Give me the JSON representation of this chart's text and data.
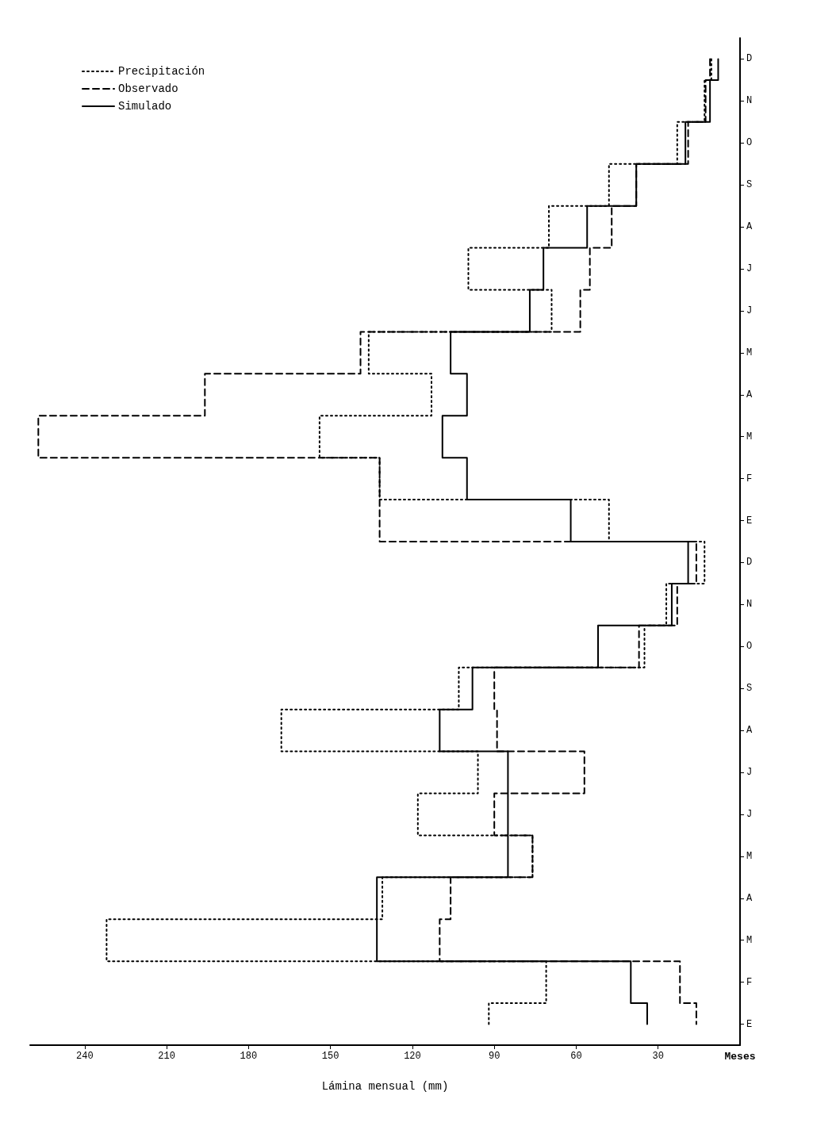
{
  "chart_data": {
    "type": "step",
    "orientation": "horizontal",
    "xlabel": "Lámina mensual (mm)",
    "ylabel": "Meses",
    "categories": [
      "D",
      "N",
      "O",
      "S",
      "A",
      "J",
      "J",
      "M",
      "A",
      "M",
      "F",
      "E",
      "D",
      "N",
      "O",
      "S",
      "A",
      "J",
      "J",
      "M",
      "A",
      "M",
      "F",
      "E"
    ],
    "series": [
      {
        "name": "Precipitación",
        "color": "#000000",
        "line_style": "dotted",
        "values": [
          10.5,
          13,
          23,
          48,
          70,
          99.5,
          69,
          136,
          113,
          154,
          132,
          48,
          13,
          27,
          35,
          103,
          168,
          96,
          118,
          76,
          131,
          232,
          71,
          92
        ]
      },
      {
        "name": "Observado",
        "color": "#000000",
        "line_style": "dashed",
        "values": [
          11,
          12.6,
          19,
          38,
          47,
          55,
          58.5,
          139,
          196,
          257,
          132,
          132,
          16,
          23,
          37,
          90,
          89,
          57,
          90,
          76,
          106,
          110,
          22,
          16
        ]
      },
      {
        "name": "Simulado",
        "color": "#000000",
        "line_style": "solid",
        "values": [
          8,
          11,
          20,
          38,
          56,
          72,
          77,
          106,
          100,
          109,
          100,
          62,
          19,
          25,
          52,
          98,
          110,
          85,
          85,
          85,
          133,
          133,
          40,
          34
        ]
      }
    ],
    "xlim": [
      260,
      0
    ],
    "xticks": [
      30,
      60,
      90,
      120,
      150,
      180,
      210,
      240
    ],
    "grid": false,
    "legend": "top left",
    "marker": "none"
  }
}
